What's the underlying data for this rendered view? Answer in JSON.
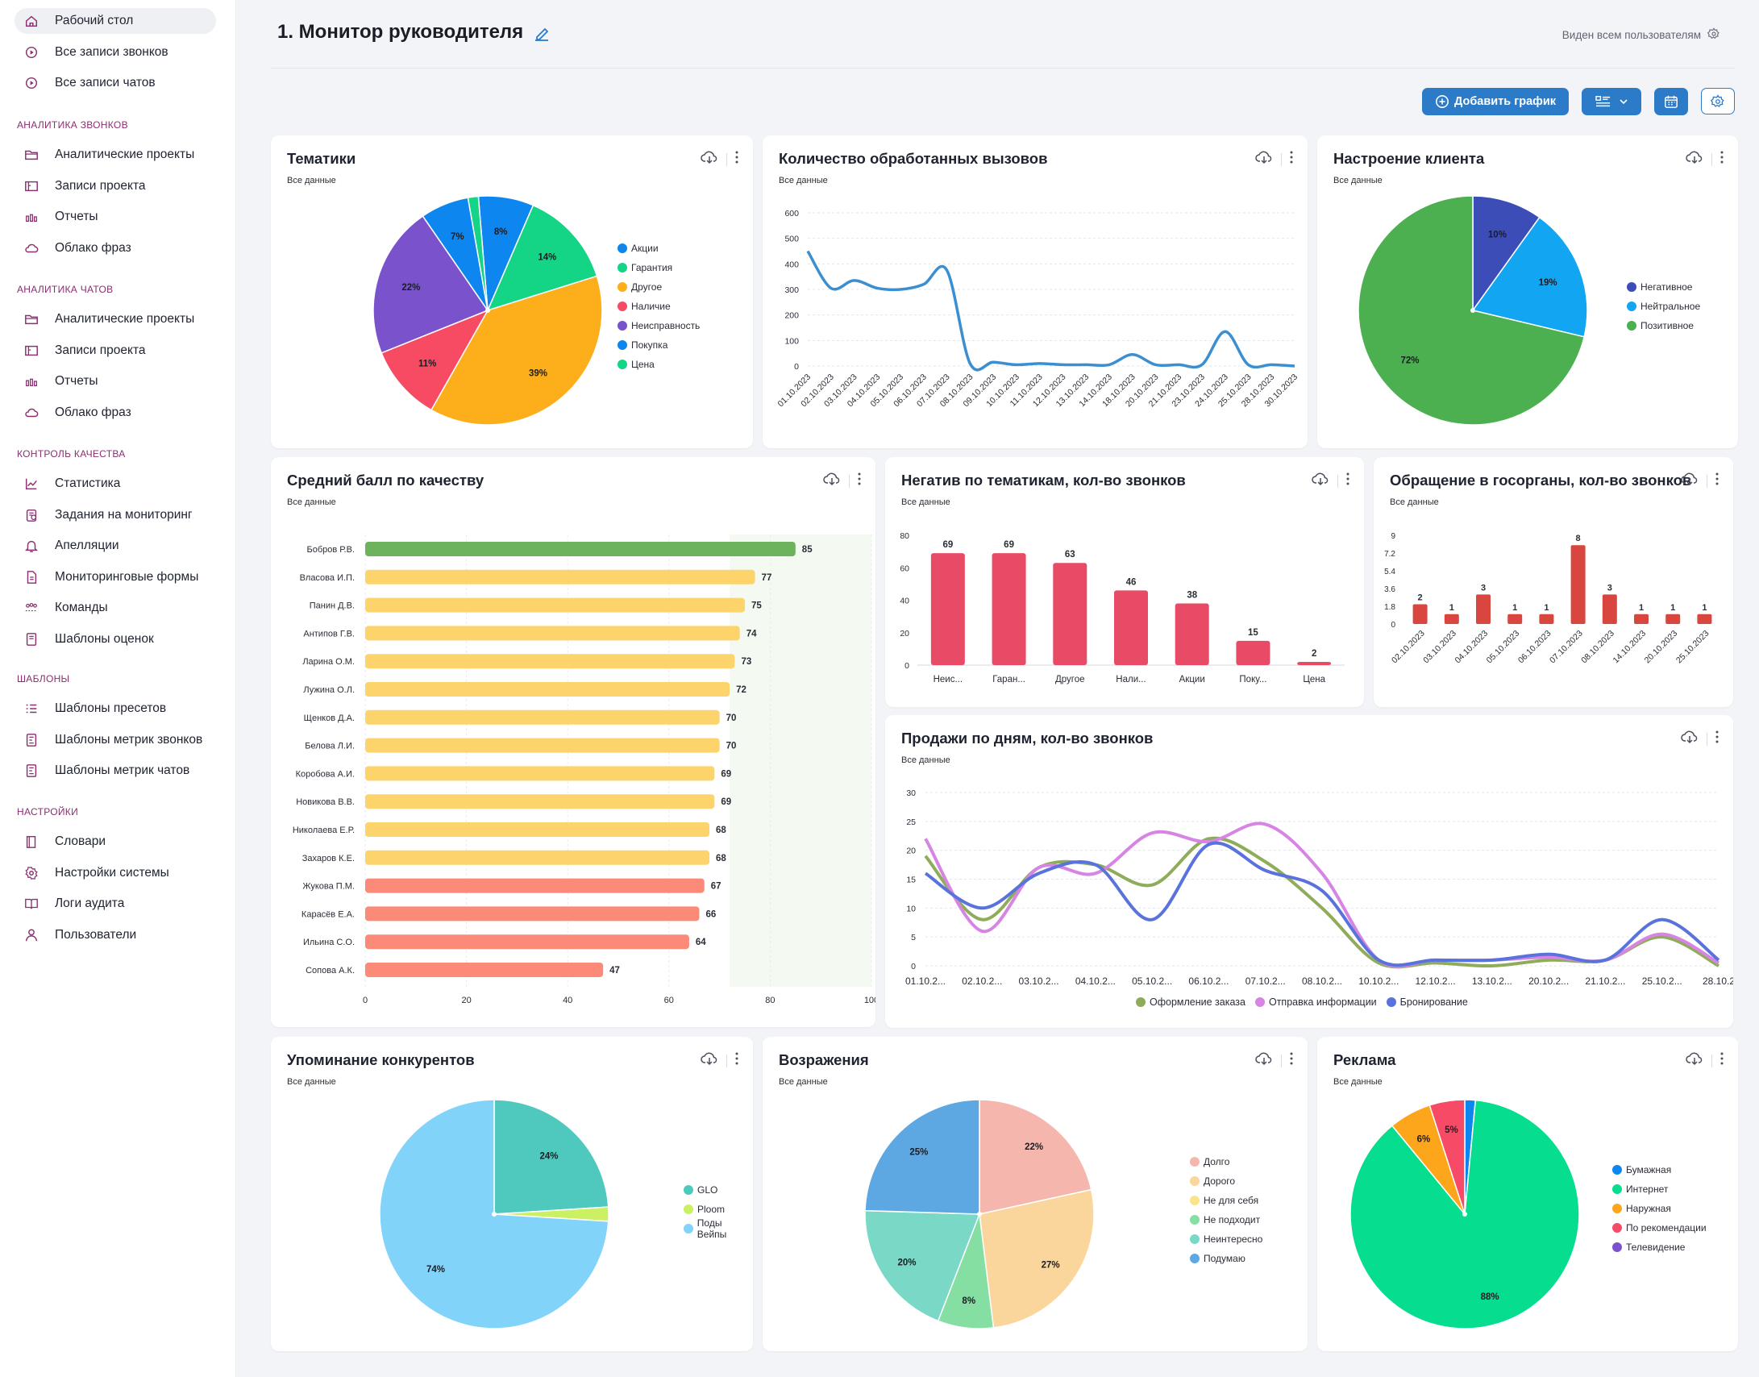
{
  "sidebar": {
    "top_items": [
      {
        "label": "Рабочий стол",
        "icon": "home-icon",
        "active": true
      },
      {
        "label": "Все записи звонков",
        "icon": "play-circle-icon"
      },
      {
        "label": "Все записи чатов",
        "icon": "play-circle-icon"
      }
    ],
    "sections": [
      {
        "title": "Аналитика звонков",
        "items": [
          {
            "label": "Аналитические проекты",
            "icon": "folder-icon"
          },
          {
            "label": "Записи проекта",
            "icon": "recordings-icon"
          },
          {
            "label": "Отчеты",
            "icon": "bar-chart-icon"
          },
          {
            "label": "Облако фраз",
            "icon": "cloud-icon"
          }
        ]
      },
      {
        "title": "Аналитика чатов",
        "items": [
          {
            "label": "Аналитические проекты",
            "icon": "folder-icon"
          },
          {
            "label": "Записи проекта",
            "icon": "recordings-icon"
          },
          {
            "label": "Отчеты",
            "icon": "bar-chart-icon"
          },
          {
            "label": "Облако фраз",
            "icon": "cloud-icon"
          }
        ]
      },
      {
        "title": "Контроль качества",
        "items": [
          {
            "label": "Статистика",
            "icon": "line-chart-icon"
          },
          {
            "label": "Задания на мониторинг",
            "icon": "tasks-icon"
          },
          {
            "label": "Апелляции",
            "icon": "bell-icon"
          },
          {
            "label": "Мониторинговые формы",
            "icon": "document-icon"
          },
          {
            "label": "Команды",
            "icon": "team-icon"
          },
          {
            "label": "Шаблоны оценок",
            "icon": "template-icon"
          }
        ]
      },
      {
        "title": "Шаблоны",
        "items": [
          {
            "label": "Шаблоны пресетов",
            "icon": "list-icon"
          },
          {
            "label": "Шаблоны метрик звонков",
            "icon": "metric-doc-icon"
          },
          {
            "label": "Шаблоны метрик чатов",
            "icon": "metric-doc-icon"
          }
        ]
      },
      {
        "title": "Настройки",
        "items": [
          {
            "label": "Словари",
            "icon": "book-icon"
          },
          {
            "label": "Настройки системы",
            "icon": "gear-icon"
          },
          {
            "label": "Логи аудита",
            "icon": "open-book-icon"
          },
          {
            "label": "Пользователи",
            "icon": "user-icon"
          }
        ]
      }
    ]
  },
  "header": {
    "title": "1. Монитор руководителя",
    "visibility": "Виден всем пользователям",
    "add_chart_label": "Добавить график"
  },
  "colors": {
    "accent": "#2b7bc9",
    "sidebar_accent": "#8a2f6f"
  },
  "cards": {
    "topics": {
      "title": "Тематики",
      "subtitle": "Все данные"
    },
    "calls": {
      "title": "Количество обработанных вызовов",
      "subtitle": "Все данные"
    },
    "mood": {
      "title": "Настроение клиента",
      "subtitle": "Все данные"
    },
    "quality": {
      "title": "Средний балл по качеству",
      "subtitle": "Все данные"
    },
    "negative": {
      "title": "Негатив по тематикам, кол-во звонков",
      "subtitle": "Все данные"
    },
    "gov": {
      "title": "Обращение в госорганы, кол-во звонков",
      "subtitle": "Все данные"
    },
    "sales": {
      "title": "Продажи по дням, кол-во звонков",
      "subtitle": "Все данные"
    },
    "competitors": {
      "title": "Упоминание конкурентов",
      "subtitle": "Все данные"
    },
    "objections": {
      "title": "Возражения",
      "subtitle": "Все данные"
    },
    "ads": {
      "title": "Реклама",
      "subtitle": "Все данные"
    }
  },
  "chart_data": [
    {
      "id": "topics",
      "type": "pie",
      "title": "Тематики",
      "categories": [
        "Акции",
        "Гарантия",
        "Другое",
        "Наличие",
        "Неисправность",
        "Покупка",
        "Цена"
      ],
      "values": [
        8,
        14,
        39,
        11,
        22,
        7,
        1.5
      ],
      "labels": [
        "8%",
        "14%",
        "39%",
        "11%",
        "22%",
        "7%",
        ""
      ],
      "colors": [
        "#0e86f0",
        "#14d486",
        "#fdae1b",
        "#f74a63",
        "#7a53cc",
        "#0e86f0",
        "#14d486"
      ],
      "legend": "right"
    },
    {
      "id": "calls",
      "type": "line",
      "title": "Количество обработанных вызовов",
      "x": [
        "01.10.2023",
        "02.10.2023",
        "03.10.2023",
        "04.10.2023",
        "05.10.2023",
        "06.10.2023",
        "07.10.2023",
        "08.10.2023",
        "09.10.2023",
        "10.10.2023",
        "11.10.2023",
        "12.10.2023",
        "13.10.2023",
        "14.10.2023",
        "18.10.2023",
        "20.10.2023",
        "21.10.2023",
        "23.10.2023",
        "24.10.2023",
        "25.10.2023",
        "28.10.2023",
        "30.10.2023"
      ],
      "series": [
        {
          "values": [
            450,
            305,
            335,
            305,
            300,
            320,
            375,
            10,
            15,
            5,
            10,
            5,
            5,
            5,
            45,
            5,
            5,
            5,
            135,
            5,
            5,
            0
          ]
        }
      ],
      "ylim": [
        0,
        600
      ],
      "yticks": [
        0,
        100,
        200,
        300,
        400,
        500,
        600
      ],
      "grid": true,
      "color": "#3b8fd0"
    },
    {
      "id": "mood",
      "type": "pie",
      "title": "Настроение клиента",
      "categories": [
        "Негативное",
        "Нейтральное",
        "Позитивное"
      ],
      "values": [
        10,
        19,
        72
      ],
      "labels": [
        "10%",
        "19%",
        "72%"
      ],
      "colors": [
        "#3d4db7",
        "#12a6f2",
        "#4caf50"
      ],
      "legend": "right"
    },
    {
      "id": "quality",
      "type": "bar",
      "orientation": "horizontal",
      "title": "Средний балл по качеству",
      "categories": [
        "Бобров Р.В.",
        "Власова И.П.",
        "Панин Д.В.",
        "Антипов Г.В.",
        "Ларина О.М.",
        "Лужина О.Л.",
        "Щенков Д.А.",
        "Белова Л.И.",
        "Коробова А.И.",
        "Новикова В.В.",
        "Николаева Е.Р.",
        "Захаров К.Е.",
        "Жукова П.М.",
        "Карасёв Е.А.",
        "Ильина С.О.",
        "Сопова А.К."
      ],
      "values": [
        85,
        77,
        75,
        74,
        73,
        72,
        70,
        70,
        69,
        69,
        68,
        68,
        67,
        66,
        64,
        47
      ],
      "xlim": [
        0,
        100
      ],
      "xticks": [
        0,
        20,
        40,
        60,
        80,
        100
      ],
      "colors": {
        "high": "#6db35e",
        "mid": "#fdd36b",
        "low": "#fc8a78"
      }
    },
    {
      "id": "negative",
      "type": "bar",
      "title": "Негатив по тематикам, кол-во звонков",
      "categories": [
        "Неис...",
        "Гаран...",
        "Другое",
        "Нали...",
        "Акции",
        "Поку...",
        "Цена"
      ],
      "values": [
        69,
        69,
        63,
        46,
        38,
        15,
        2
      ],
      "ylim": [
        0,
        80
      ],
      "yticks": [
        0,
        20,
        40,
        60,
        80
      ],
      "color": "#e84b66"
    },
    {
      "id": "gov",
      "type": "bar",
      "title": "Обращение в госорганы, кол-во звонков",
      "categories": [
        "02.10.2023",
        "03.10.2023",
        "04.10.2023",
        "05.10.2023",
        "06.10.2023",
        "07.10.2023",
        "08.10.2023",
        "14.10.2023",
        "20.10.2023",
        "25.10.2023"
      ],
      "values": [
        2,
        1,
        3,
        1,
        1,
        8,
        3,
        1,
        1,
        1
      ],
      "ylim": [
        0,
        9
      ],
      "yticks": [
        "0",
        "1.8",
        "3.6",
        "5.4",
        "7.2",
        "9"
      ],
      "color": "#d9463f"
    },
    {
      "id": "sales",
      "type": "line",
      "title": "Продажи по дням, кол-во звонков",
      "x": [
        "01.10.2...",
        "02.10.2...",
        "03.10.2...",
        "04.10.2...",
        "05.10.2...",
        "06.10.2...",
        "07.10.2...",
        "08.10.2...",
        "10.10.2...",
        "12.10.2...",
        "13.10.2...",
        "20.10.2...",
        "21.10.2...",
        "25.10.2...",
        "28.10.2"
      ],
      "series": [
        {
          "name": "Оформление заказа",
          "color": "#8fac5a",
          "values": [
            19,
            8,
            17,
            17.5,
            14,
            22,
            18,
            10,
            0.5,
            0.5,
            0,
            1,
            1,
            5,
            0
          ]
        },
        {
          "name": "Отправка информации",
          "color": "#d785e3",
          "values": [
            22,
            6,
            17,
            16,
            23,
            21.5,
            24.5,
            16,
            1,
            1,
            1,
            1.5,
            1,
            5.5,
            0.5
          ]
        },
        {
          "name": "Бронирование",
          "color": "#5a73dc",
          "values": [
            16,
            10,
            16,
            17.5,
            8,
            21,
            16.5,
            13,
            1,
            1,
            1,
            2,
            1,
            8,
            1
          ]
        }
      ],
      "ylim": [
        0,
        30
      ],
      "yticks": [
        0,
        5,
        10,
        15,
        20,
        25,
        30
      ],
      "grid": true,
      "legend": "bottom"
    },
    {
      "id": "competitors",
      "type": "pie",
      "title": "Упоминание конкурентов",
      "categories": [
        "GLO",
        "Ploom",
        "Поды Вейпы"
      ],
      "values": [
        24,
        2,
        74
      ],
      "labels": [
        "24%",
        "",
        "74%"
      ],
      "colors": [
        "#4fc9be",
        "#cbf062",
        "#82d3f9"
      ],
      "legend": "right"
    },
    {
      "id": "objections",
      "type": "pie",
      "title": "Возражения",
      "categories": [
        "Долго",
        "Дорого",
        "Не для себя",
        "Не подходит",
        "Неинтересно",
        "Подумаю"
      ],
      "values": [
        22,
        27,
        0,
        8,
        20,
        25
      ],
      "labels": [
        "22%",
        "27%",
        "",
        "8%",
        "20%",
        "25%"
      ],
      "colors": [
        "#f5b6ad",
        "#fad69c",
        "#fbe38a",
        "#86dfa2",
        "#79d9c6",
        "#5da8e3"
      ],
      "legend": "right"
    },
    {
      "id": "ads",
      "type": "pie",
      "title": "Реклама",
      "categories": [
        "Бумажная",
        "Интернет",
        "Наружная",
        "По рекомендации",
        "Телевидение"
      ],
      "values": [
        1.5,
        88,
        6,
        5,
        0
      ],
      "labels": [
        "",
        "88%",
        "6%",
        "5%",
        ""
      ],
      "colors": [
        "#0e86f0",
        "#06dd8e",
        "#fda61b",
        "#f64a66",
        "#7a53cc"
      ],
      "legend": "right"
    }
  ]
}
